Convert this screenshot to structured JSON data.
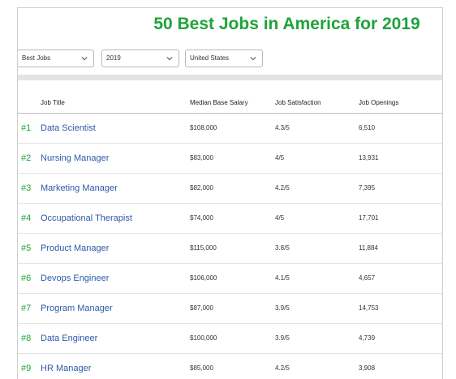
{
  "page": {
    "title": "50 Best Jobs in America for 2019"
  },
  "filters": {
    "category": "Best Jobs",
    "year": "2019",
    "country": "United States"
  },
  "table": {
    "headers": {
      "job_title": "Job Title",
      "salary": "Median Base Salary",
      "satisfaction": "Job Satisfaction",
      "openings": "Job Openings"
    },
    "rows": [
      {
        "rank": "#1",
        "job": "Data Scientist",
        "salary": "$108,000",
        "satisfaction": "4.3/5",
        "openings": "6,510"
      },
      {
        "rank": "#2",
        "job": "Nursing Manager",
        "salary": "$83,000",
        "satisfaction": "4/5",
        "openings": "13,931"
      },
      {
        "rank": "#3",
        "job": "Marketing Manager",
        "salary": "$82,000",
        "satisfaction": "4.2/5",
        "openings": "7,395"
      },
      {
        "rank": "#4",
        "job": "Occupational Therapist",
        "salary": "$74,000",
        "satisfaction": "4/5",
        "openings": "17,701"
      },
      {
        "rank": "#5",
        "job": "Product Manager",
        "salary": "$115,000",
        "satisfaction": "3.8/5",
        "openings": "11,884"
      },
      {
        "rank": "#6",
        "job": "Devops Engineer",
        "salary": "$106,000",
        "satisfaction": "4.1/5",
        "openings": "4,657"
      },
      {
        "rank": "#7",
        "job": "Program Manager",
        "salary": "$87,000",
        "satisfaction": "3.9/5",
        "openings": "14,753"
      },
      {
        "rank": "#8",
        "job": "Data Engineer",
        "salary": "$100,000",
        "satisfaction": "3.9/5",
        "openings": "4,739"
      },
      {
        "rank": "#9",
        "job": "HR Manager",
        "salary": "$85,000",
        "satisfaction": "4.2/5",
        "openings": "3,908"
      }
    ]
  },
  "colors": {
    "accent_green": "#1fa33a",
    "link_blue": "#2b5aa8"
  },
  "icons": {
    "dropdown": "chevron-down-icon"
  }
}
